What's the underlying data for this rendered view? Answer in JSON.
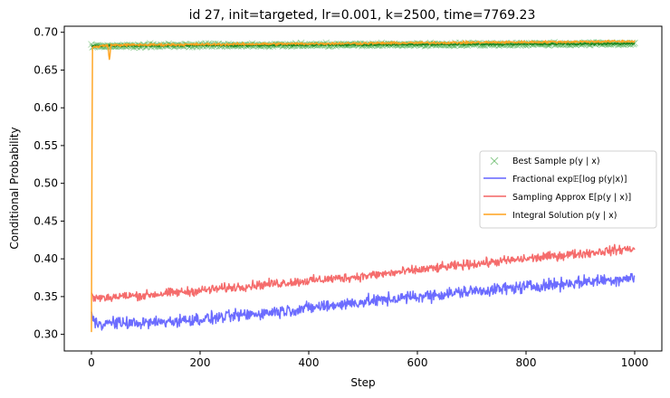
{
  "chart_data": {
    "type": "line",
    "title": "id 27, init=targeted, lr=0.001, k=2500, time=7769.23",
    "xlabel": "Step",
    "ylabel": "Conditional Probability",
    "xlim": [
      -50,
      1050
    ],
    "ylim": [
      0.278,
      0.708
    ],
    "xticks": [
      0,
      200,
      400,
      600,
      800,
      1000
    ],
    "xtick_labels": [
      "0",
      "200",
      "400",
      "600",
      "800",
      "1000"
    ],
    "yticks": [
      0.3,
      0.35,
      0.4,
      0.45,
      0.5,
      0.55,
      0.6,
      0.65,
      0.7
    ],
    "ytick_labels": [
      "0.30",
      "0.35",
      "0.40",
      "0.45",
      "0.50",
      "0.55",
      "0.60",
      "0.65",
      "0.70"
    ],
    "grid": false,
    "legend_position": "center-right",
    "series": [
      {
        "name": "Best Sample p(y | x)",
        "legend_label": "Best Sample p(y | x)",
        "style": "marker-x",
        "color": "#4caf50",
        "x_range": [
          0,
          1000
        ],
        "start": 0.682,
        "end": 0.685,
        "noise": 0.003
      },
      {
        "name": "Fractional exp E[log p(y|x)]",
        "legend_label": "Fractional exp𝔼[log p(y|x)]",
        "style": "line",
        "color": "#6464ff",
        "x_range": [
          0,
          1000
        ],
        "points": [
          [
            0,
            0.33
          ],
          [
            3,
            0.318
          ],
          [
            10,
            0.315
          ],
          [
            100,
            0.315
          ],
          [
            200,
            0.32
          ],
          [
            300,
            0.327
          ],
          [
            400,
            0.335
          ],
          [
            500,
            0.343
          ],
          [
            600,
            0.35
          ],
          [
            700,
            0.357
          ],
          [
            800,
            0.363
          ],
          [
            900,
            0.369
          ],
          [
            1000,
            0.375
          ]
        ],
        "noise": 0.012
      },
      {
        "name": "Sampling Approx E[p(y | x)]",
        "legend_label": "Sampling Approx E[p(y | x)]",
        "style": "line",
        "color": "#f46464",
        "x_range": [
          0,
          1000
        ],
        "points": [
          [
            0,
            0.355
          ],
          [
            5,
            0.348
          ],
          [
            100,
            0.352
          ],
          [
            200,
            0.358
          ],
          [
            300,
            0.365
          ],
          [
            400,
            0.371
          ],
          [
            500,
            0.377
          ],
          [
            600,
            0.385
          ],
          [
            700,
            0.393
          ],
          [
            800,
            0.4
          ],
          [
            900,
            0.407
          ],
          [
            1000,
            0.414
          ]
        ],
        "noise": 0.009
      },
      {
        "name": "Integral Solution p(y | x)",
        "legend_label": "Integral Solution p(y | x)",
        "style": "line",
        "color": "#ffa21c",
        "x_range": [
          0,
          1000
        ],
        "points": [
          [
            0,
            0.303
          ],
          [
            1,
            0.55
          ],
          [
            2,
            0.68
          ],
          [
            30,
            0.683
          ],
          [
            33,
            0.664
          ],
          [
            36,
            0.683
          ],
          [
            1000,
            0.688
          ]
        ],
        "noise": 0.0025
      }
    ]
  }
}
